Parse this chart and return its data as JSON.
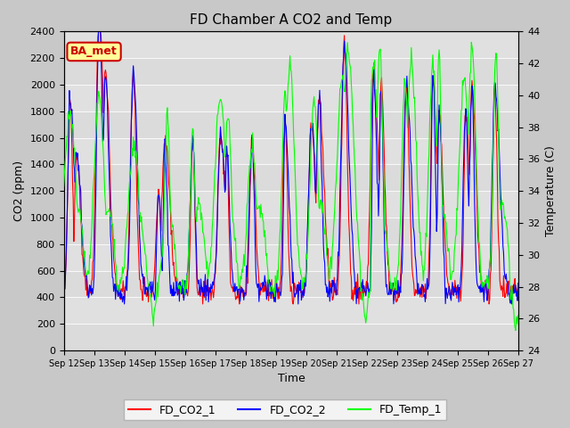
{
  "title": "FD Chamber A CO2 and Temp",
  "xlabel": "Time",
  "ylabel_left": "CO2 (ppm)",
  "ylabel_right": "Temperature (C)",
  "ylim_left": [
    0,
    2400
  ],
  "ylim_right": [
    24,
    44
  ],
  "legend_labels": [
    "FD_CO2_1",
    "FD_CO2_2",
    "FD_Temp_1"
  ],
  "legend_colors": [
    "red",
    "blue",
    "#00ff00"
  ],
  "annotation_text": "BA_met",
  "annotation_color": "#cc0000",
  "annotation_bg": "#ffff99",
  "fig_facecolor": "#c8c8c8",
  "plot_facecolor": "#e0e0e0",
  "title_fontsize": 11,
  "axis_fontsize": 9,
  "tick_fontsize": 8,
  "linewidth": 0.8,
  "yticks_left": [
    0,
    200,
    400,
    600,
    800,
    1000,
    1200,
    1400,
    1600,
    1800,
    2000,
    2200,
    2400
  ],
  "yticks_right": [
    24,
    26,
    28,
    30,
    32,
    34,
    36,
    38,
    40,
    42,
    44
  ],
  "grid_color": "#ffffff",
  "grid_alpha": 0.8
}
